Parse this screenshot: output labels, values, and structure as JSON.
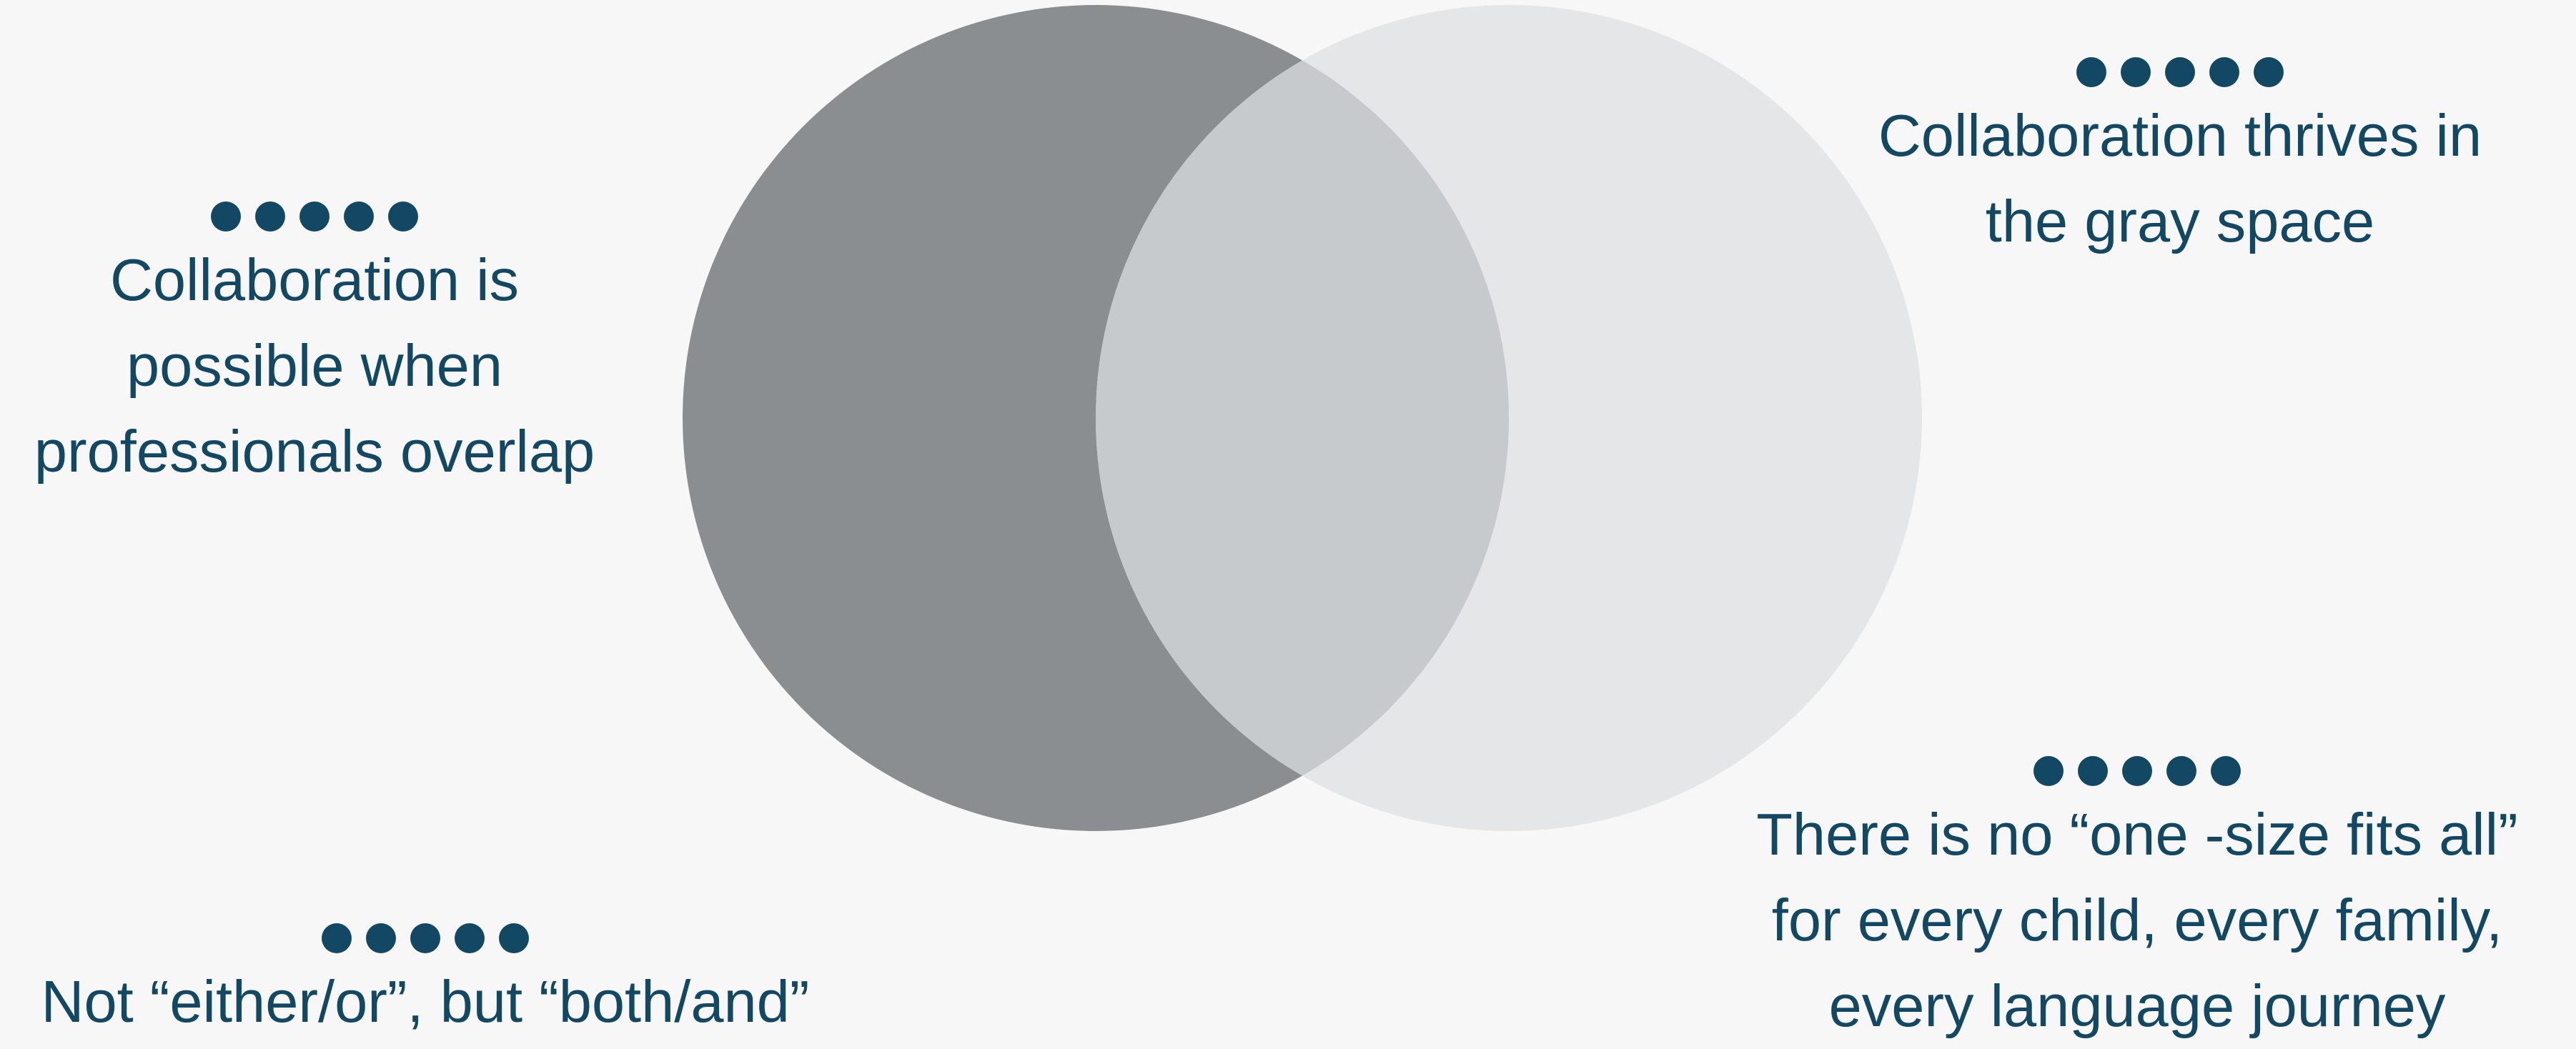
{
  "venn": {
    "left_circle_color": "#8b8e90",
    "right_circle_color": "#e5e6e7",
    "overlap_color": "#c7cacc",
    "background_color": "#f7f7f7"
  },
  "callouts": {
    "left": {
      "lines": [
        "Collaboration is",
        "possible when",
        "professionals overlap"
      ]
    },
    "top_right": {
      "lines": [
        "Collaboration thrives in",
        "the gray space"
      ]
    },
    "bottom_right": {
      "lines": [
        "There is no “one  -size fits all”",
        "for every child, every family,",
        "every language journey"
      ]
    },
    "bottom_left": {
      "lines": [
        "Not “either/or”, but “both/and”"
      ]
    }
  },
  "accent_color": "#134864"
}
